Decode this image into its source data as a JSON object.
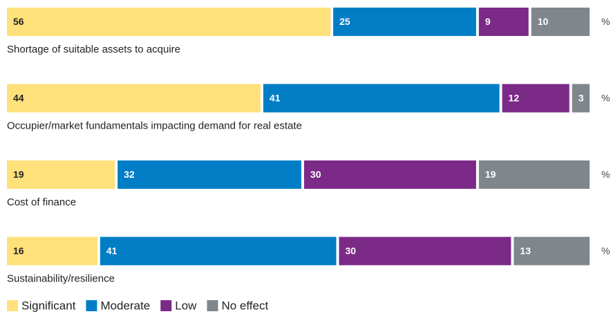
{
  "chart_data": {
    "type": "stacked-bar-horizontal",
    "categories": [
      "Shortage of suitable assets to acquire",
      "Occupier/market fundamentals impacting demand for real estate",
      "Cost of finance",
      "Sustainability/resilience"
    ],
    "series": [
      {
        "name": "Significant",
        "color": "#ffe17b",
        "values": [
          56,
          44,
          19,
          16
        ]
      },
      {
        "name": "Moderate",
        "color": "#007dc5",
        "values": [
          25,
          41,
          32,
          41
        ]
      },
      {
        "name": "Low",
        "color": "#7b2a87",
        "values": [
          9,
          12,
          30,
          30
        ]
      },
      {
        "name": "No effect",
        "color": "#7f868c",
        "values": [
          10,
          3,
          19,
          13
        ]
      }
    ],
    "unit": "%",
    "xlim": [
      0,
      100
    ],
    "legend": "bottom-left"
  }
}
